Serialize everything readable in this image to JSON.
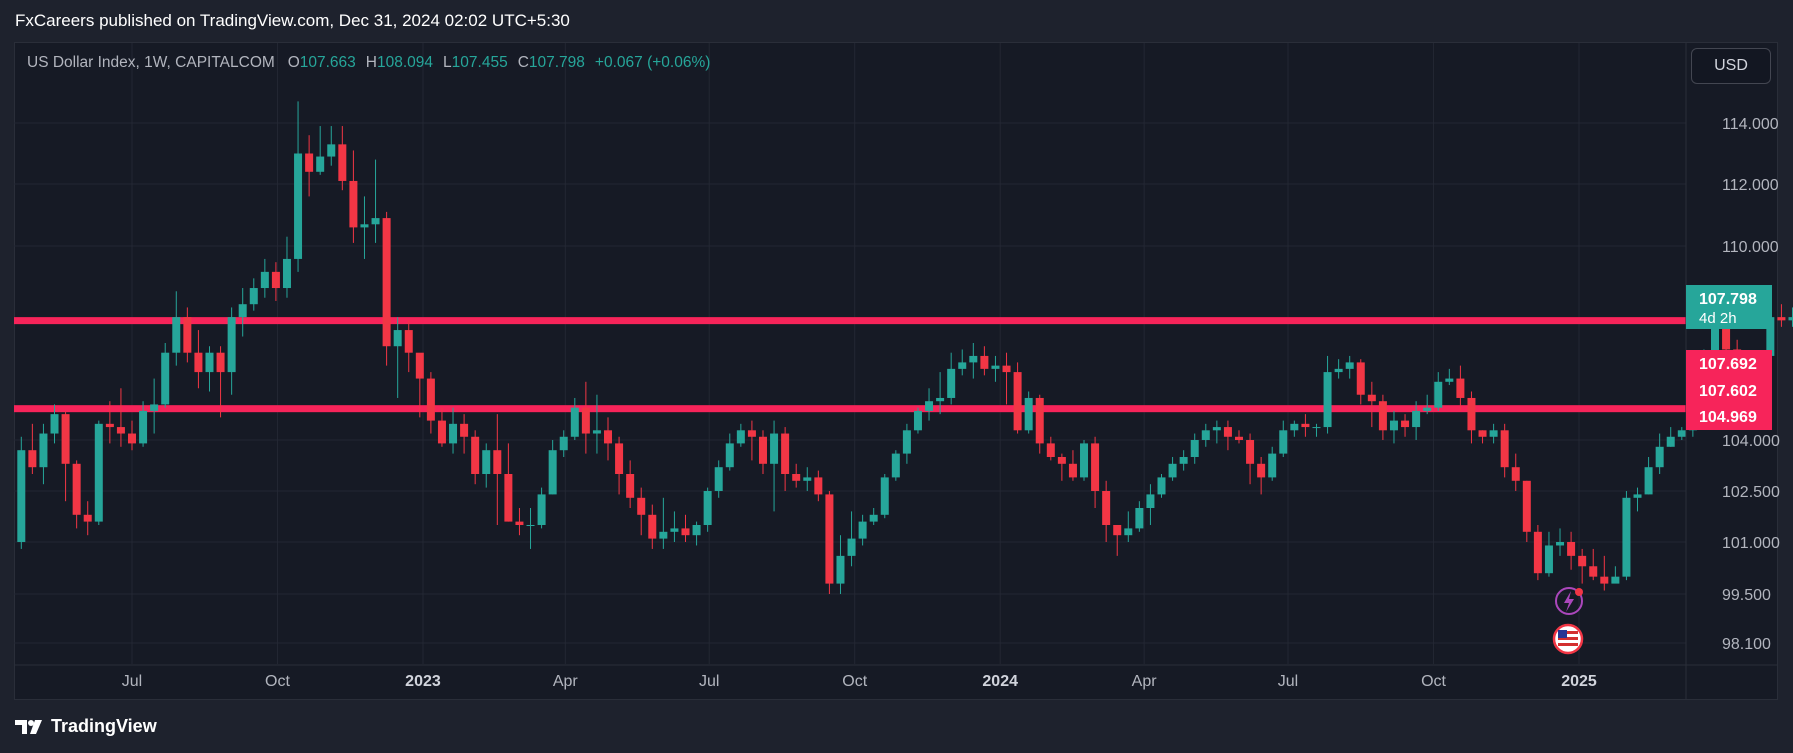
{
  "header": {
    "publisher_line": "FxCareers published on TradingView.com, Dec 31, 2024 02:02 UTC+5:30"
  },
  "legend": {
    "symbol": "US Dollar Index, 1W, CAPITALCOM",
    "open_label": "O",
    "open": "107.663",
    "high_label": "H",
    "high": "108.094",
    "low_label": "L",
    "low": "107.455",
    "close_label": "C",
    "close": "107.798",
    "change": "+0.067 (+0.06%)"
  },
  "currency_button": "USD",
  "footer": {
    "brand": "TradingView"
  },
  "colors": {
    "up": "#26a69a",
    "down": "#f23645",
    "level_line": "#f7245a",
    "background": "#161a25"
  },
  "icons": [
    "lightning-icon",
    "us-flag-icon",
    "tradingview-logo-icon"
  ],
  "chart_data": {
    "type": "candlestick",
    "symbol": "US Dollar Index",
    "interval": "1W",
    "x_tick_labels": [
      "Jul",
      "Oct",
      "2023",
      "Apr",
      "Jul",
      "Oct",
      "2024",
      "Apr",
      "Jul",
      "Oct",
      "2025"
    ],
    "x_tick_dates": [
      "2022-07-01",
      "2022-10-01",
      "2023-01-01",
      "2023-04-01",
      "2023-07-01",
      "2023-10-01",
      "2024-01-01",
      "2024-04-01",
      "2024-07-01",
      "2024-10-01",
      "2025-01-01"
    ],
    "y_tick_labels": [
      "114.000",
      "112.000",
      "110.000",
      "104.000",
      "102.500",
      "101.000",
      "99.500",
      "98.100"
    ],
    "y_tick_values": [
      114.0,
      112.0,
      110.0,
      104.0,
      102.5,
      101.0,
      99.5,
      98.1
    ],
    "y_scale": "non-linear (as rendered)",
    "ylim": [
      97.4,
      115.2
    ],
    "grid": true,
    "horizontal_levels": [
      {
        "value": 107.692,
        "label": "107.692"
      },
      {
        "value": 104.969,
        "label": "104.969"
      }
    ],
    "price_tags": [
      {
        "value": 107.798,
        "label": "107.798",
        "sub": "4d 2h",
        "color": "#26a69a"
      },
      {
        "value": 107.692,
        "label": "107.692",
        "color": "#f7245a"
      },
      {
        "value": 107.602,
        "label": "107.602",
        "color": "#f7245a"
      },
      {
        "value": 104.969,
        "label": "104.969",
        "color": "#f7245a"
      }
    ],
    "first_candle_date": "2022-04-22",
    "candles": [
      [
        101.0,
        103.7,
        100.8,
        104.1
      ],
      [
        103.7,
        103.2,
        103.0,
        104.5
      ],
      [
        103.2,
        104.2,
        102.7,
        104.5
      ],
      [
        104.2,
        104.8,
        103.9,
        105.1
      ],
      [
        104.8,
        103.3,
        102.2,
        104.9
      ],
      [
        103.3,
        101.8,
        101.4,
        103.4
      ],
      [
        101.8,
        101.6,
        101.2,
        102.2
      ],
      [
        101.6,
        104.5,
        101.5,
        104.6
      ],
      [
        104.5,
        104.4,
        103.9,
        105.2
      ],
      [
        104.4,
        104.2,
        103.8,
        105.6
      ],
      [
        104.2,
        103.9,
        103.7,
        104.6
      ],
      [
        103.9,
        104.9,
        103.8,
        105.2
      ],
      [
        104.9,
        105.1,
        104.2,
        105.9
      ],
      [
        105.1,
        106.7,
        105.0,
        107.0
      ],
      [
        106.7,
        107.8,
        106.3,
        108.6
      ],
      [
        107.8,
        106.7,
        106.4,
        108.1
      ],
      [
        106.7,
        106.1,
        105.6,
        107.4
      ],
      [
        106.1,
        106.7,
        105.5,
        106.9
      ],
      [
        106.7,
        106.1,
        104.7,
        106.9
      ],
      [
        106.1,
        107.8,
        105.4,
        108.1
      ],
      [
        107.8,
        108.2,
        107.2,
        108.7
      ],
      [
        108.2,
        108.7,
        108.0,
        109.0
      ],
      [
        108.7,
        109.2,
        108.4,
        109.6
      ],
      [
        109.2,
        108.7,
        108.3,
        109.5
      ],
      [
        108.7,
        109.6,
        108.4,
        110.3
      ],
      [
        109.6,
        113.0,
        109.2,
        114.7
      ],
      [
        113.0,
        112.4,
        111.6,
        113.6
      ],
      [
        112.4,
        112.9,
        112.3,
        113.9
      ],
      [
        112.9,
        113.3,
        112.6,
        113.9
      ],
      [
        113.3,
        112.1,
        111.8,
        113.9
      ],
      [
        112.1,
        110.6,
        110.1,
        113.1
      ],
      [
        110.6,
        110.7,
        109.6,
        111.6
      ],
      [
        110.7,
        110.9,
        110.1,
        112.8
      ],
      [
        110.9,
        106.9,
        106.3,
        111.1
      ],
      [
        106.9,
        107.4,
        105.3,
        107.8
      ],
      [
        107.4,
        106.7,
        106.1,
        107.7
      ],
      [
        106.7,
        105.9,
        104.7,
        106.6
      ],
      [
        105.9,
        104.6,
        104.2,
        106.1
      ],
      [
        104.6,
        103.9,
        103.8,
        105.0
      ],
      [
        103.9,
        104.5,
        103.6,
        105.0
      ],
      [
        104.5,
        104.1,
        103.6,
        104.8
      ],
      [
        104.1,
        103.0,
        102.7,
        104.3
      ],
      [
        103.0,
        103.7,
        102.6,
        103.9
      ],
      [
        103.7,
        103.0,
        101.5,
        104.8
      ],
      [
        103.0,
        101.6,
        101.6,
        103.9
      ],
      [
        101.6,
        101.5,
        101.2,
        102.0
      ],
      [
        101.5,
        101.5,
        100.8,
        102.0
      ],
      [
        101.5,
        102.4,
        101.4,
        102.6
      ],
      [
        102.4,
        103.7,
        102.4,
        104.0
      ],
      [
        103.7,
        104.1,
        103.5,
        104.3
      ],
      [
        104.1,
        105.0,
        104.0,
        105.3
      ],
      [
        105.0,
        104.2,
        103.6,
        105.8
      ],
      [
        104.2,
        104.3,
        103.6,
        105.4
      ],
      [
        104.3,
        103.9,
        103.4,
        104.7
      ],
      [
        103.9,
        103.0,
        102.4,
        104.1
      ],
      [
        103.0,
        102.3,
        102.0,
        103.4
      ],
      [
        102.3,
        101.8,
        101.2,
        102.6
      ],
      [
        101.8,
        101.1,
        100.8,
        102.1
      ],
      [
        101.1,
        101.3,
        100.8,
        102.3
      ],
      [
        101.3,
        101.4,
        101.0,
        101.9
      ],
      [
        101.4,
        101.2,
        101.0,
        101.8
      ],
      [
        101.2,
        101.5,
        100.9,
        101.6
      ],
      [
        101.5,
        102.5,
        101.3,
        102.6
      ],
      [
        102.5,
        103.2,
        102.3,
        103.4
      ],
      [
        103.2,
        103.9,
        103.1,
        104.2
      ],
      [
        103.9,
        104.3,
        103.8,
        104.5
      ],
      [
        104.3,
        104.1,
        103.4,
        104.6
      ],
      [
        104.1,
        103.3,
        103.0,
        104.3
      ],
      [
        103.3,
        104.2,
        101.9,
        104.6
      ],
      [
        104.2,
        103.0,
        102.5,
        104.4
      ],
      [
        103.0,
        102.8,
        102.6,
        103.3
      ],
      [
        102.8,
        102.9,
        102.5,
        103.2
      ],
      [
        102.9,
        102.4,
        102.2,
        103.1
      ],
      [
        102.4,
        99.8,
        99.5,
        102.5
      ],
      [
        99.8,
        100.6,
        99.5,
        101.2
      ],
      [
        100.6,
        101.1,
        100.3,
        101.9
      ],
      [
        101.1,
        101.6,
        100.9,
        101.8
      ],
      [
        101.6,
        101.8,
        101.5,
        102.0
      ],
      [
        101.8,
        102.9,
        101.7,
        103.0
      ],
      [
        102.9,
        103.6,
        102.8,
        103.7
      ],
      [
        103.6,
        104.3,
        103.3,
        104.5
      ],
      [
        104.3,
        104.9,
        104.2,
        105.0
      ],
      [
        104.9,
        105.2,
        104.6,
        105.6
      ],
      [
        105.2,
        105.3,
        104.8,
        106.1
      ],
      [
        105.3,
        106.2,
        105.1,
        106.7
      ],
      [
        106.2,
        106.4,
        106.0,
        106.8
      ],
      [
        106.4,
        106.6,
        105.9,
        107.0
      ],
      [
        106.6,
        106.2,
        106.0,
        106.9
      ],
      [
        106.2,
        106.3,
        105.8,
        106.6
      ],
      [
        106.3,
        106.1,
        105.1,
        106.7
      ],
      [
        106.1,
        104.3,
        104.2,
        106.4
      ],
      [
        104.3,
        105.3,
        104.2,
        105.5
      ],
      [
        105.3,
        103.9,
        103.6,
        105.4
      ],
      [
        103.9,
        103.5,
        103.4,
        104.1
      ],
      [
        103.5,
        103.3,
        102.8,
        103.6
      ],
      [
        103.3,
        102.9,
        102.8,
        103.7
      ],
      [
        102.9,
        103.9,
        102.8,
        104.0
      ],
      [
        103.9,
        102.5,
        102.0,
        104.1
      ],
      [
        102.5,
        101.5,
        101.0,
        102.8
      ],
      [
        101.5,
        101.2,
        100.6,
        101.4
      ],
      [
        101.2,
        101.4,
        101.0,
        101.9
      ],
      [
        101.4,
        102.0,
        101.3,
        102.2
      ],
      [
        102.0,
        102.4,
        101.5,
        102.7
      ],
      [
        102.4,
        102.9,
        102.3,
        103.0
      ],
      [
        102.9,
        103.3,
        102.8,
        103.5
      ],
      [
        103.3,
        103.5,
        103.1,
        103.7
      ],
      [
        103.5,
        104.0,
        103.3,
        104.2
      ],
      [
        104.0,
        104.3,
        103.8,
        104.5
      ],
      [
        104.3,
        104.4,
        103.9,
        104.6
      ],
      [
        104.4,
        104.1,
        103.7,
        104.6
      ],
      [
        104.1,
        104.0,
        103.9,
        104.3
      ],
      [
        104.0,
        103.3,
        102.7,
        104.2
      ],
      [
        103.3,
        102.9,
        102.4,
        103.5
      ],
      [
        102.9,
        103.6,
        102.8,
        103.8
      ],
      [
        103.6,
        104.3,
        103.5,
        104.6
      ],
      [
        104.3,
        104.5,
        104.1,
        104.6
      ],
      [
        104.5,
        104.4,
        104.1,
        104.8
      ],
      [
        104.4,
        104.4,
        104.1,
        104.5
      ],
      [
        104.4,
        106.1,
        104.2,
        106.6
      ],
      [
        106.1,
        106.2,
        105.9,
        106.5
      ],
      [
        106.2,
        106.4,
        105.9,
        106.6
      ],
      [
        106.4,
        105.4,
        105.1,
        106.5
      ],
      [
        105.4,
        105.2,
        104.4,
        105.8
      ],
      [
        105.2,
        104.3,
        104.0,
        105.4
      ],
      [
        104.3,
        104.6,
        103.9,
        104.9
      ],
      [
        104.6,
        104.4,
        104.1,
        104.8
      ],
      [
        104.4,
        104.9,
        104.0,
        105.2
      ],
      [
        104.9,
        105.0,
        104.8,
        105.4
      ],
      [
        105.0,
        105.8,
        104.9,
        106.1
      ],
      [
        105.8,
        105.9,
        105.7,
        106.2
      ],
      [
        105.9,
        105.3,
        104.9,
        106.3
      ],
      [
        105.3,
        104.3,
        103.9,
        105.5
      ],
      [
        104.3,
        104.1,
        103.9,
        104.3
      ],
      [
        104.1,
        104.3,
        103.9,
        104.5
      ],
      [
        104.3,
        103.2,
        102.9,
        104.5
      ],
      [
        103.2,
        102.8,
        102.5,
        103.6
      ],
      [
        102.8,
        101.3,
        101.0,
        102.8
      ],
      [
        101.3,
        100.1,
        99.9,
        101.5
      ],
      [
        100.1,
        100.9,
        100.0,
        101.3
      ],
      [
        100.9,
        101.0,
        100.6,
        101.4
      ],
      [
        101.0,
        100.6,
        100.2,
        101.3
      ],
      [
        100.6,
        100.3,
        99.8,
        100.8
      ],
      [
        100.3,
        100.0,
        99.9,
        100.8
      ],
      [
        100.0,
        99.8,
        99.6,
        100.6
      ],
      [
        99.8,
        100.0,
        99.9,
        100.3
      ],
      [
        100.0,
        102.3,
        99.9,
        102.5
      ],
      [
        102.3,
        102.4,
        101.9,
        102.6
      ],
      [
        102.4,
        103.2,
        102.4,
        103.5
      ],
      [
        103.2,
        103.8,
        103.0,
        104.2
      ],
      [
        103.8,
        104.1,
        103.8,
        104.4
      ],
      [
        104.1,
        104.3,
        104.0,
        104.4
      ],
      [
        104.3,
        105.3,
        104.1,
        105.5
      ],
      [
        105.3,
        106.7,
        104.6,
        106.8
      ],
      [
        106.7,
        107.5,
        106.6,
        108.0
      ],
      [
        107.5,
        106.8,
        106.6,
        107.6
      ],
      [
        106.8,
        105.6,
        105.5,
        107.1
      ],
      [
        105.6,
        105.7,
        105.2,
        106.0
      ],
      [
        105.7,
        106.6,
        105.5,
        106.7
      ],
      [
        106.6,
        107.8,
        106.4,
        108.3
      ],
      [
        107.8,
        107.7,
        107.5,
        108.2
      ],
      [
        107.7,
        107.8,
        107.5,
        108.1
      ]
    ]
  }
}
